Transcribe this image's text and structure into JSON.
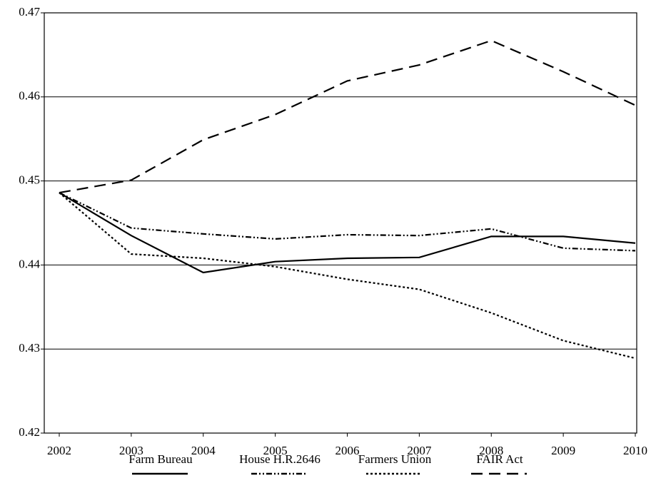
{
  "chart_data": {
    "type": "line",
    "categories": [
      "2002",
      "2003",
      "2004",
      "2005",
      "2006",
      "2007",
      "2008",
      "2009",
      "2010"
    ],
    "series": [
      {
        "name": "Farm Bureau",
        "color": "#000000",
        "style": "solid",
        "values": [
          0.4486,
          0.4435,
          0.4391,
          0.4404,
          0.4408,
          0.4409,
          0.4434,
          0.4434,
          0.4426
        ]
      },
      {
        "name": "House H.R.2646",
        "color": "#000000",
        "style": "dash-dot-dot",
        "values": [
          0.4486,
          0.4444,
          0.4437,
          0.4431,
          0.4436,
          0.4435,
          0.4443,
          0.442,
          0.4417
        ]
      },
      {
        "name": "Farmers Union",
        "color": "#000000",
        "style": "dotted",
        "values": [
          0.4486,
          0.4413,
          0.4408,
          0.4398,
          0.4383,
          0.4371,
          0.4343,
          0.431,
          0.4289
        ]
      },
      {
        "name": "FAIR Act",
        "color": "#000000",
        "style": "dashed",
        "values": [
          0.4486,
          0.4501,
          0.4549,
          0.4579,
          0.4619,
          0.4638,
          0.4667,
          0.463,
          0.459
        ]
      }
    ],
    "ylim": [
      0.42,
      0.47
    ],
    "yticks": [
      0.42,
      0.43,
      0.44,
      0.45,
      0.46,
      0.47
    ],
    "grid": true,
    "legend": "bottom"
  }
}
